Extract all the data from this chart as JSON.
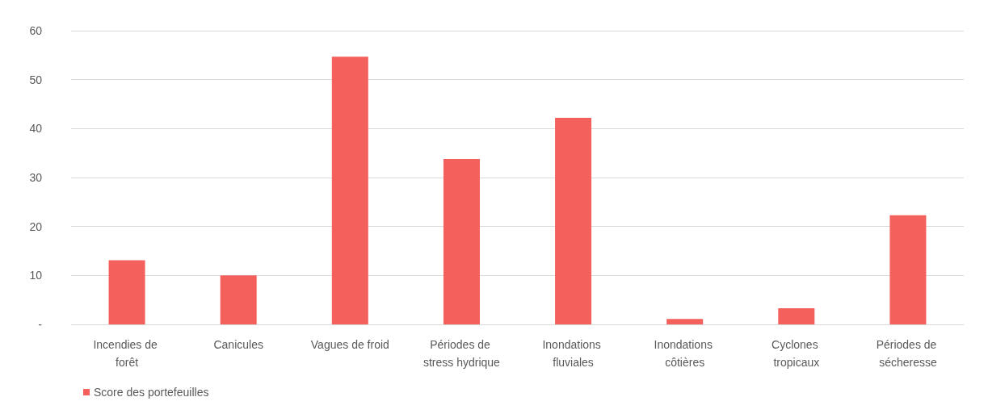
{
  "chart_data": {
    "type": "bar",
    "categories": [
      "Incendies de forêt",
      "Canicules",
      "Vagues de froid",
      "Périodes de stress hydrique",
      "Inondations fluviales",
      "Inondations côtières",
      "Cyclones tropicaux",
      "Périodes de sécheresse"
    ],
    "series": [
      {
        "name": "Score des portefeuilles",
        "color": "#f4605c",
        "values": [
          13.1,
          10,
          54.7,
          33.8,
          42.2,
          1.1,
          3.3,
          22.3
        ]
      }
    ],
    "ylim": [
      0,
      60
    ],
    "yticks": [
      {
        "value": 0,
        "label": "-"
      },
      10,
      20,
      30,
      40,
      50,
      60
    ],
    "grid": "y",
    "legend": "bottom left"
  }
}
